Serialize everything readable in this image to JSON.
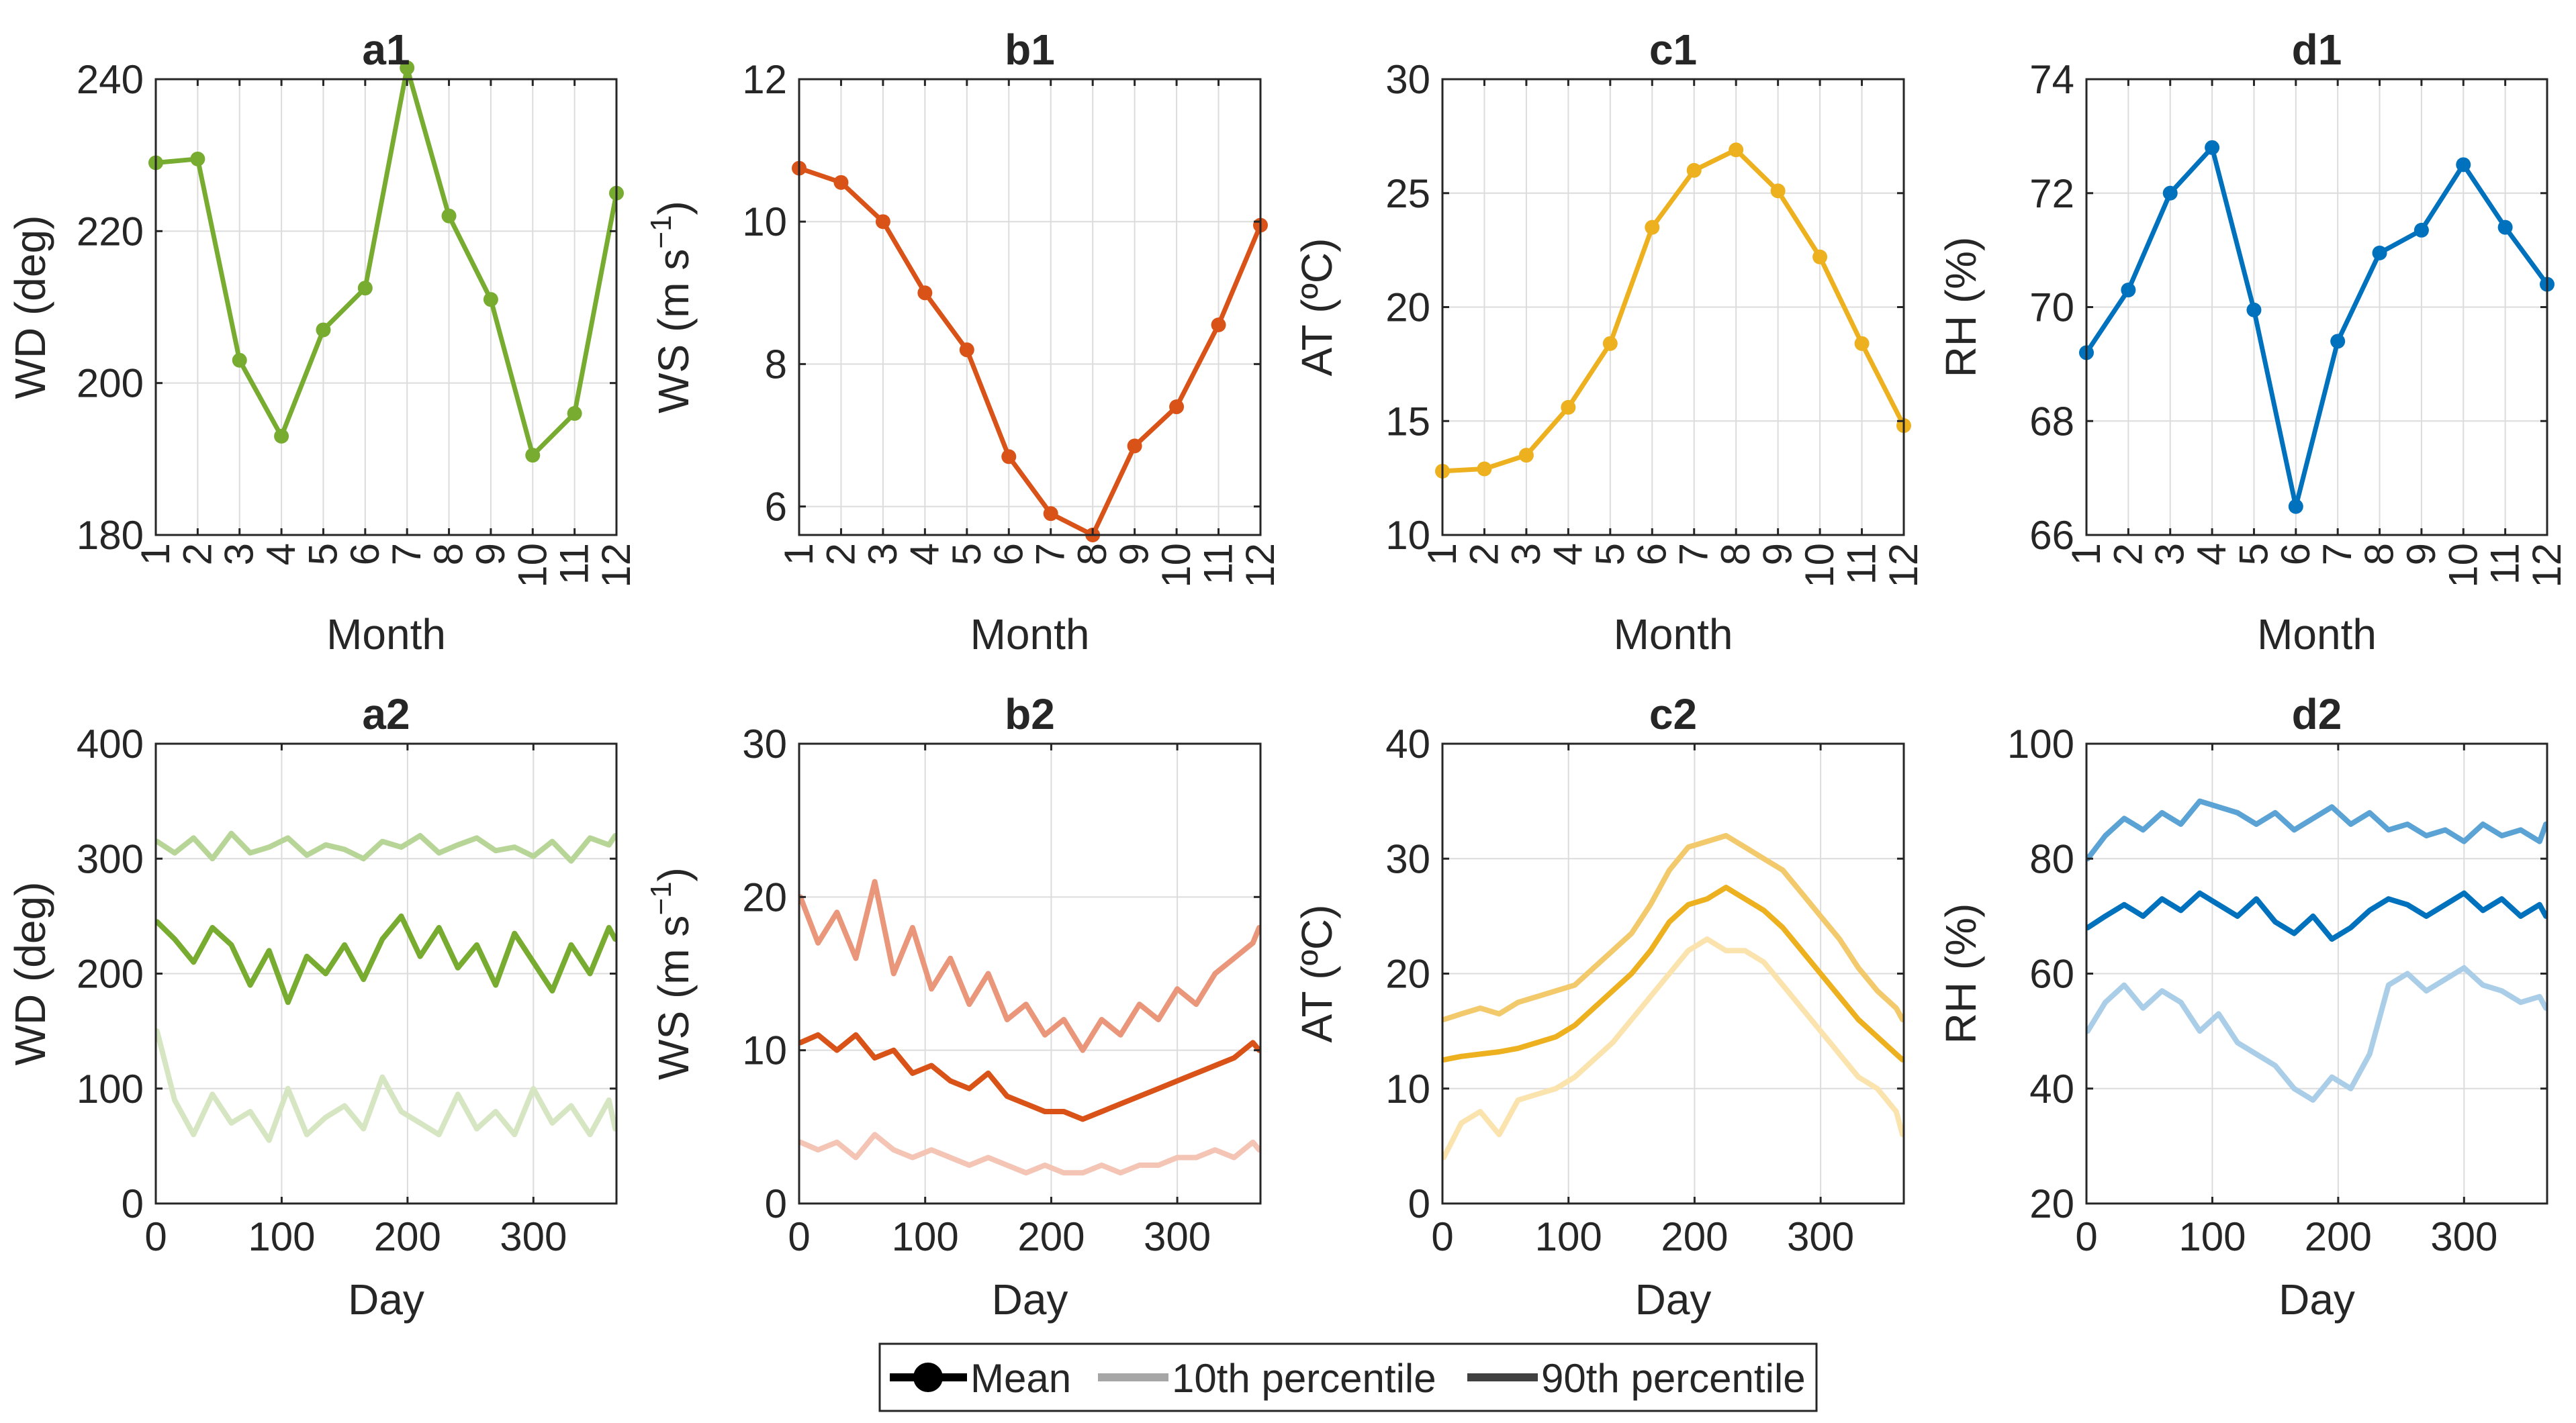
{
  "figure": {
    "legend": {
      "entries": [
        {
          "label": "Mean",
          "color": "#000000"
        },
        {
          "label": "10th percentile",
          "color": "#a6a6a6"
        },
        {
          "label": "90th percentile",
          "color": "#404040"
        }
      ]
    }
  },
  "chart_data": [
    {
      "id": "a1",
      "type": "line",
      "title": "a1",
      "xlabel": "Month",
      "ylabel": "WD (deg)",
      "ylabel_sup": "",
      "xlim": [
        1,
        12
      ],
      "ylim": [
        180,
        240
      ],
      "xticks": [
        1,
        2,
        3,
        4,
        5,
        6,
        7,
        8,
        9,
        10,
        11,
        12
      ],
      "yticks": [
        180,
        200,
        220,
        240
      ],
      "rotate_xticks": true,
      "series": [
        {
          "name": "Mean",
          "color": "#77ac30",
          "markers": true,
          "x": [
            1,
            2,
            3,
            4,
            5,
            6,
            7,
            8,
            9,
            10,
            11,
            12
          ],
          "values": [
            229,
            229.5,
            203,
            193,
            207,
            212.5,
            241.5,
            222,
            211,
            190.5,
            196,
            225
          ]
        }
      ]
    },
    {
      "id": "b1",
      "type": "line",
      "title": "b1",
      "xlabel": "Month",
      "ylabel": "WS (m s",
      "ylabel_sup": "−1",
      "xlim": [
        1,
        12
      ],
      "ylim": [
        5.6,
        12
      ],
      "xticks": [
        1,
        2,
        3,
        4,
        5,
        6,
        7,
        8,
        9,
        10,
        11,
        12
      ],
      "yticks": [
        6,
        8,
        10,
        12
      ],
      "rotate_xticks": true,
      "series": [
        {
          "name": "Mean",
          "color": "#d95319",
          "markers": true,
          "x": [
            1,
            2,
            3,
            4,
            5,
            6,
            7,
            8,
            9,
            10,
            11,
            12
          ],
          "values": [
            10.75,
            10.55,
            10.0,
            9.0,
            8.2,
            6.7,
            5.9,
            5.6,
            6.85,
            7.4,
            8.55,
            9.95
          ]
        }
      ]
    },
    {
      "id": "c1",
      "type": "line",
      "title": "c1",
      "xlabel": "Month",
      "ylabel": "AT (ºC)",
      "ylabel_sup": "",
      "xlim": [
        1,
        12
      ],
      "ylim": [
        10,
        30
      ],
      "xticks": [
        1,
        2,
        3,
        4,
        5,
        6,
        7,
        8,
        9,
        10,
        11,
        12
      ],
      "yticks": [
        10,
        15,
        20,
        25,
        30
      ],
      "rotate_xticks": true,
      "series": [
        {
          "name": "Mean",
          "color": "#edb120",
          "markers": true,
          "x": [
            1,
            2,
            3,
            4,
            5,
            6,
            7,
            8,
            9,
            10,
            11,
            12
          ],
          "values": [
            12.8,
            12.9,
            13.5,
            15.6,
            18.4,
            23.5,
            26.0,
            26.9,
            25.1,
            22.2,
            18.4,
            14.8
          ]
        }
      ]
    },
    {
      "id": "d1",
      "type": "line",
      "title": "d1",
      "xlabel": "Month",
      "ylabel": "RH (%)",
      "ylabel_sup": "",
      "xlim": [
        1,
        12
      ],
      "ylim": [
        66,
        74
      ],
      "xticks": [
        1,
        2,
        3,
        4,
        5,
        6,
        7,
        8,
        9,
        10,
        11,
        12
      ],
      "yticks": [
        66,
        68,
        70,
        72,
        74
      ],
      "rotate_xticks": true,
      "series": [
        {
          "name": "Mean",
          "color": "#0072bd",
          "markers": true,
          "x": [
            1,
            2,
            3,
            4,
            5,
            6,
            7,
            8,
            9,
            10,
            11,
            12
          ],
          "values": [
            69.2,
            70.3,
            72.0,
            72.8,
            69.95,
            66.5,
            69.4,
            70.95,
            71.35,
            72.5,
            71.4,
            70.4
          ]
        }
      ]
    },
    {
      "id": "a2",
      "type": "line",
      "title": "a2",
      "xlabel": "Day",
      "ylabel": "WD (deg)",
      "ylabel_sup": "",
      "xlim": [
        0,
        366
      ],
      "ylim": [
        0,
        400
      ],
      "xticks": [
        0,
        100,
        200,
        300
      ],
      "yticks": [
        0,
        100,
        200,
        300,
        400
      ],
      "rotate_xticks": false,
      "series": [
        {
          "name": "90th percentile",
          "color": "#b7d597",
          "markers": false,
          "x": [
            1,
            15,
            30,
            45,
            60,
            75,
            90,
            105,
            120,
            135,
            150,
            165,
            180,
            195,
            210,
            225,
            240,
            255,
            270,
            285,
            300,
            315,
            330,
            345,
            360,
            365
          ],
          "values": [
            315,
            305,
            318,
            300,
            322,
            305,
            310,
            318,
            303,
            312,
            308,
            300,
            315,
            310,
            320,
            305,
            312,
            318,
            307,
            310,
            302,
            315,
            298,
            318,
            312,
            320
          ]
        },
        {
          "name": "Mean",
          "color": "#77ac30",
          "markers": false,
          "x": [
            1,
            15,
            30,
            45,
            60,
            75,
            90,
            105,
            120,
            135,
            150,
            165,
            180,
            195,
            210,
            225,
            240,
            255,
            270,
            285,
            300,
            315,
            330,
            345,
            360,
            365
          ],
          "values": [
            245,
            230,
            210,
            240,
            225,
            190,
            220,
            175,
            215,
            200,
            225,
            195,
            230,
            250,
            215,
            240,
            205,
            225,
            190,
            235,
            210,
            185,
            225,
            200,
            240,
            230
          ]
        },
        {
          "name": "10th percentile",
          "color": "#d6e6c2",
          "markers": false,
          "x": [
            1,
            15,
            30,
            45,
            60,
            75,
            90,
            105,
            120,
            135,
            150,
            165,
            180,
            195,
            210,
            225,
            240,
            255,
            270,
            285,
            300,
            315,
            330,
            345,
            360,
            365
          ],
          "values": [
            150,
            90,
            60,
            95,
            70,
            80,
            55,
            100,
            60,
            75,
            85,
            65,
            110,
            80,
            70,
            60,
            95,
            65,
            80,
            60,
            100,
            70,
            85,
            60,
            90,
            65
          ]
        }
      ]
    },
    {
      "id": "b2",
      "type": "line",
      "title": "b2",
      "xlabel": "Day",
      "ylabel": "WS (m s",
      "ylabel_sup": "−1",
      "xlim": [
        0,
        366
      ],
      "ylim": [
        0,
        30
      ],
      "xticks": [
        0,
        100,
        200,
        300
      ],
      "yticks": [
        0,
        10,
        20,
        30
      ],
      "rotate_xticks": false,
      "series": [
        {
          "name": "90th percentile",
          "color": "#e9967a",
          "markers": false,
          "x": [
            1,
            15,
            30,
            45,
            60,
            75,
            90,
            105,
            120,
            135,
            150,
            165,
            180,
            195,
            210,
            225,
            240,
            255,
            270,
            285,
            300,
            315,
            330,
            345,
            360,
            365
          ],
          "values": [
            20,
            17,
            19,
            16,
            21,
            15,
            18,
            14,
            16,
            13,
            15,
            12,
            13,
            11,
            12,
            10,
            12,
            11,
            13,
            12,
            14,
            13,
            15,
            16,
            17,
            18
          ]
        },
        {
          "name": "Mean",
          "color": "#d95319",
          "markers": false,
          "x": [
            1,
            15,
            30,
            45,
            60,
            75,
            90,
            105,
            120,
            135,
            150,
            165,
            180,
            195,
            210,
            225,
            240,
            255,
            270,
            285,
            300,
            315,
            330,
            345,
            360,
            365
          ],
          "values": [
            10.5,
            11,
            10,
            11,
            9.5,
            10,
            8.5,
            9,
            8,
            7.5,
            8.5,
            7,
            6.5,
            6,
            6,
            5.5,
            6,
            6.5,
            7,
            7.5,
            8,
            8.5,
            9,
            9.5,
            10.5,
            10
          ]
        },
        {
          "name": "10th percentile",
          "color": "#f4c4b4",
          "markers": false,
          "x": [
            1,
            15,
            30,
            45,
            60,
            75,
            90,
            105,
            120,
            135,
            150,
            165,
            180,
            195,
            210,
            225,
            240,
            255,
            270,
            285,
            300,
            315,
            330,
            345,
            360,
            365
          ],
          "values": [
            4,
            3.5,
            4,
            3,
            4.5,
            3.5,
            3,
            3.5,
            3,
            2.5,
            3,
            2.5,
            2,
            2.5,
            2,
            2,
            2.5,
            2,
            2.5,
            2.5,
            3,
            3,
            3.5,
            3,
            4,
            3.5
          ]
        }
      ]
    },
    {
      "id": "c2",
      "type": "line",
      "title": "c2",
      "xlabel": "Day",
      "ylabel": "AT (ºC)",
      "ylabel_sup": "",
      "xlim": [
        0,
        366
      ],
      "ylim": [
        0,
        40
      ],
      "xticks": [
        0,
        100,
        200,
        300
      ],
      "yticks": [
        0,
        10,
        20,
        30,
        40
      ],
      "rotate_xticks": false,
      "series": [
        {
          "name": "90th percentile",
          "color": "#f2c96b",
          "markers": false,
          "x": [
            1,
            15,
            30,
            45,
            60,
            75,
            90,
            105,
            120,
            135,
            150,
            165,
            180,
            195,
            210,
            225,
            240,
            255,
            270,
            285,
            300,
            315,
            330,
            345,
            360,
            365
          ],
          "values": [
            16,
            16.5,
            17,
            16.5,
            17.5,
            18,
            18.5,
            19,
            20.5,
            22,
            23.5,
            26,
            29,
            31,
            31.5,
            32,
            31,
            30,
            29,
            27,
            25,
            23,
            20.5,
            18.5,
            17,
            16
          ]
        },
        {
          "name": "Mean",
          "color": "#edb120",
          "markers": false,
          "x": [
            1,
            15,
            30,
            45,
            60,
            75,
            90,
            105,
            120,
            135,
            150,
            165,
            180,
            195,
            210,
            225,
            240,
            255,
            270,
            285,
            300,
            315,
            330,
            345,
            360,
            365
          ],
          "values": [
            12.5,
            12.8,
            13,
            13.2,
            13.5,
            14,
            14.5,
            15.5,
            17,
            18.5,
            20,
            22,
            24.5,
            26,
            26.5,
            27.5,
            26.5,
            25.5,
            24,
            22,
            20,
            18,
            16,
            14.5,
            13,
            12.5
          ]
        },
        {
          "name": "10th percentile",
          "color": "#fbe3ae",
          "markers": false,
          "x": [
            1,
            15,
            30,
            45,
            60,
            75,
            90,
            105,
            120,
            135,
            150,
            165,
            180,
            195,
            210,
            225,
            240,
            255,
            270,
            285,
            300,
            315,
            330,
            345,
            360,
            365
          ],
          "values": [
            4,
            7,
            8,
            6,
            9,
            9.5,
            10,
            11,
            12.5,
            14,
            16,
            18,
            20,
            22,
            23,
            22,
            22,
            21,
            19,
            17,
            15,
            13,
            11,
            10,
            8,
            6
          ]
        }
      ]
    },
    {
      "id": "d2",
      "type": "line",
      "title": "d2",
      "xlabel": "Day",
      "ylabel": "RH (%)",
      "ylabel_sup": "",
      "xlim": [
        0,
        366
      ],
      "ylim": [
        20,
        100
      ],
      "xticks": [
        0,
        100,
        200,
        300
      ],
      "yticks": [
        20,
        40,
        60,
        80,
        100
      ],
      "rotate_xticks": false,
      "series": [
        {
          "name": "90th percentile",
          "color": "#5ba3d4",
          "markers": false,
          "x": [
            1,
            15,
            30,
            45,
            60,
            75,
            90,
            105,
            120,
            135,
            150,
            165,
            180,
            195,
            210,
            225,
            240,
            255,
            270,
            285,
            300,
            315,
            330,
            345,
            360,
            365
          ],
          "values": [
            80,
            84,
            87,
            85,
            88,
            86,
            90,
            89,
            88,
            86,
            88,
            85,
            87,
            89,
            86,
            88,
            85,
            86,
            84,
            85,
            83,
            86,
            84,
            85,
            83,
            86
          ]
        },
        {
          "name": "Mean",
          "color": "#0072bd",
          "markers": false,
          "x": [
            1,
            15,
            30,
            45,
            60,
            75,
            90,
            105,
            120,
            135,
            150,
            165,
            180,
            195,
            210,
            225,
            240,
            255,
            270,
            285,
            300,
            315,
            330,
            345,
            360,
            365
          ],
          "values": [
            68,
            70,
            72,
            70,
            73,
            71,
            74,
            72,
            70,
            73,
            69,
            67,
            70,
            66,
            68,
            71,
            73,
            72,
            70,
            72,
            74,
            71,
            73,
            70,
            72,
            70
          ]
        },
        {
          "name": "10th percentile",
          "color": "#aacde8",
          "markers": false,
          "x": [
            1,
            15,
            30,
            45,
            60,
            75,
            90,
            105,
            120,
            135,
            150,
            165,
            180,
            195,
            210,
            225,
            240,
            255,
            270,
            285,
            300,
            315,
            330,
            345,
            360,
            365
          ],
          "values": [
            50,
            55,
            58,
            54,
            57,
            55,
            50,
            53,
            48,
            46,
            44,
            40,
            38,
            42,
            40,
            46,
            58,
            60,
            57,
            59,
            61,
            58,
            57,
            55,
            56,
            54
          ]
        }
      ]
    }
  ]
}
